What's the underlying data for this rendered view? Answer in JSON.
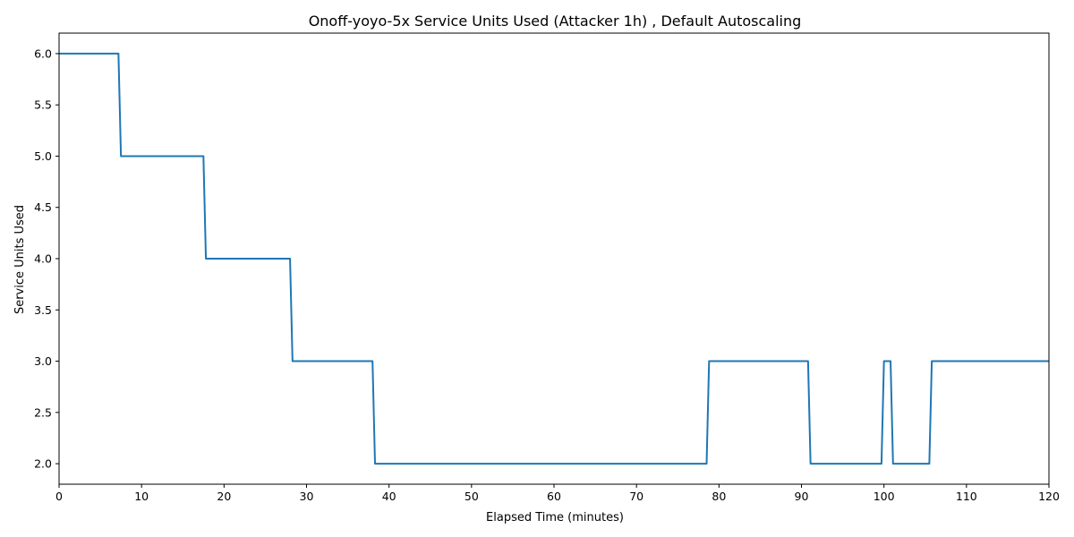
{
  "chart_data": {
    "type": "line",
    "title": "Onoff-yoyo-5x Service Units Used (Attacker 1h) , Default Autoscaling",
    "xlabel": "Elapsed Time (minutes)",
    "ylabel": "Service Units Used",
    "xlim": [
      0,
      120
    ],
    "ylim": [
      1.8,
      6.2
    ],
    "xticks": [
      0,
      10,
      20,
      30,
      40,
      50,
      60,
      70,
      80,
      90,
      100,
      110,
      120
    ],
    "xtick_labels": [
      "0",
      "10",
      "20",
      "30",
      "40",
      "50",
      "60",
      "70",
      "80",
      "90",
      "100",
      "110",
      "120"
    ],
    "yticks": [
      2.0,
      2.5,
      3.0,
      3.5,
      4.0,
      4.5,
      5.0,
      5.5,
      6.0
    ],
    "ytick_labels": [
      "2.0",
      "2.5",
      "3.0",
      "3.5",
      "4.0",
      "4.5",
      "5.0",
      "5.5",
      "6.0"
    ],
    "grid": false,
    "line_color": "#1f77b4",
    "series": [
      {
        "x": [
          0,
          7.2,
          7.5,
          17.5,
          17.8,
          28.0,
          28.3,
          38.0,
          38.3,
          78.5,
          78.8,
          90.8,
          91.1,
          99.7,
          100.0,
          100.8,
          101.1,
          105.5,
          105.8,
          120
        ],
        "y": [
          6,
          6,
          5,
          5,
          4,
          4,
          3,
          3,
          2,
          2,
          3,
          3,
          2,
          2,
          3,
          3,
          2,
          2,
          3,
          3
        ]
      }
    ]
  }
}
